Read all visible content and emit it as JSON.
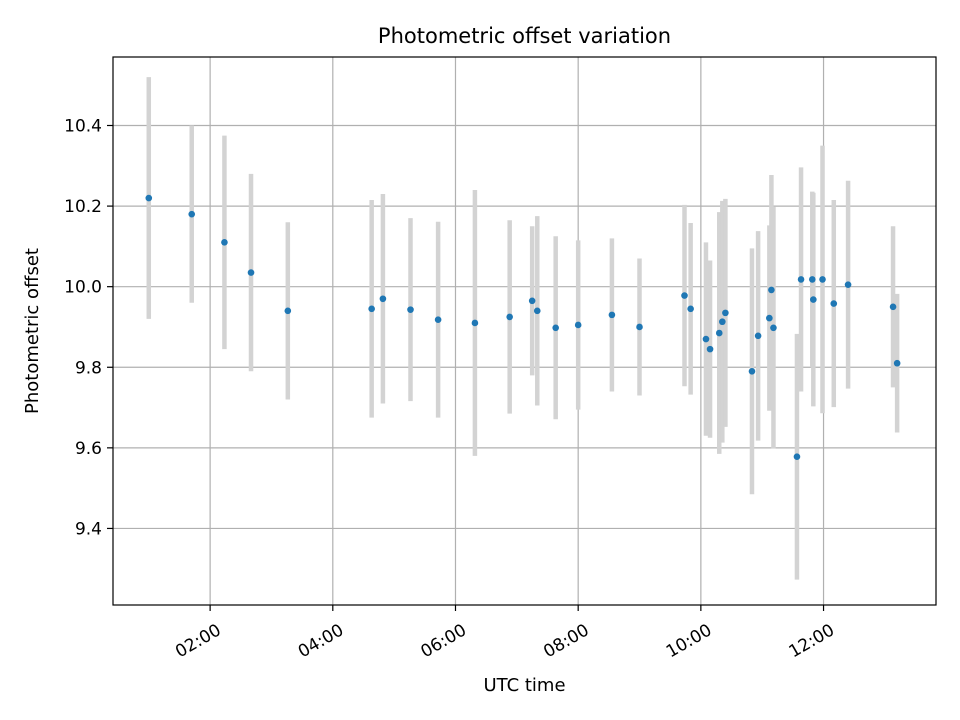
{
  "chart_data": {
    "type": "scatter",
    "title": "Photometric offset variation",
    "xlabel": "UTC time",
    "ylabel": "Photometric offset",
    "x_unit": "UTC time (HH:MM)",
    "xlim": [
      "00:25",
      "13:50"
    ],
    "ylim": [
      9.21,
      10.57
    ],
    "grid": true,
    "xticks": [
      "02:00",
      "04:00",
      "06:00",
      "08:00",
      "10:00",
      "12:00"
    ],
    "yticks": [
      9.4,
      9.6,
      9.8,
      10.0,
      10.2,
      10.4
    ],
    "series": [
      {
        "marker_color": "#1f77b4",
        "errorbar_color": "#d3d3d3",
        "points": [
          {
            "x": "01:00",
            "y": 10.22,
            "yerr": 0.3
          },
          {
            "x": "01:42",
            "y": 10.18,
            "yerr": 0.22
          },
          {
            "x": "02:14",
            "y": 10.11,
            "yerr": 0.265
          },
          {
            "x": "02:40",
            "y": 10.035,
            "yerr": 0.245
          },
          {
            "x": "03:16",
            "y": 9.94,
            "yerr": 0.22
          },
          {
            "x": "04:38",
            "y": 9.945,
            "yerr": 0.27
          },
          {
            "x": "04:49",
            "y": 9.97,
            "yerr": 0.26
          },
          {
            "x": "05:16",
            "y": 9.943,
            "yerr": 0.227
          },
          {
            "x": "05:43",
            "y": 9.918,
            "yerr": 0.243
          },
          {
            "x": "06:19",
            "y": 9.91,
            "yerr": 0.33
          },
          {
            "x": "06:53",
            "y": 9.925,
            "yerr": 0.24
          },
          {
            "x": "07:15",
            "y": 9.965,
            "yerr": 0.185
          },
          {
            "x": "07:20",
            "y": 9.94,
            "yerr": 0.235
          },
          {
            "x": "07:38",
            "y": 9.898,
            "yerr": 0.227
          },
          {
            "x": "08:00",
            "y": 9.905,
            "yerr": 0.21
          },
          {
            "x": "08:33",
            "y": 9.93,
            "yerr": 0.19
          },
          {
            "x": "09:00",
            "y": 9.9,
            "yerr": 0.17
          },
          {
            "x": "09:44",
            "y": 9.978,
            "yerr": 0.225
          },
          {
            "x": "09:50",
            "y": 9.945,
            "yerr": 0.213
          },
          {
            "x": "10:05",
            "y": 9.87,
            "yerr": 0.24
          },
          {
            "x": "10:09",
            "y": 9.845,
            "yerr": 0.22
          },
          {
            "x": "10:18",
            "y": 9.885,
            "yerr": 0.3
          },
          {
            "x": "10:21",
            "y": 9.913,
            "yerr": 0.3
          },
          {
            "x": "10:24",
            "y": 9.935,
            "yerr": 0.283
          },
          {
            "x": "10:50",
            "y": 9.79,
            "yerr": 0.305
          },
          {
            "x": "10:56",
            "y": 9.878,
            "yerr": 0.26
          },
          {
            "x": "11:07",
            "y": 9.922,
            "yerr": 0.23
          },
          {
            "x": "11:09",
            "y": 9.992,
            "yerr": 0.285
          },
          {
            "x": "11:11",
            "y": 9.898,
            "yerr": 0.3
          },
          {
            "x": "11:34",
            "y": 9.578,
            "yerr": 0.305
          },
          {
            "x": "11:38",
            "y": 10.018,
            "yerr": 0.278
          },
          {
            "x": "11:49",
            "y": 10.018,
            "yerr": 0.218
          },
          {
            "x": "11:50",
            "y": 9.968,
            "yerr": 0.265
          },
          {
            "x": "11:59",
            "y": 10.018,
            "yerr": 0.332
          },
          {
            "x": "12:10",
            "y": 9.958,
            "yerr": 0.257
          },
          {
            "x": "12:24",
            "y": 10.005,
            "yerr": 0.258
          },
          {
            "x": "13:08",
            "y": 9.95,
            "yerr": 0.2
          },
          {
            "x": "13:12",
            "y": 9.81,
            "yerr": 0.172
          }
        ]
      }
    ]
  }
}
